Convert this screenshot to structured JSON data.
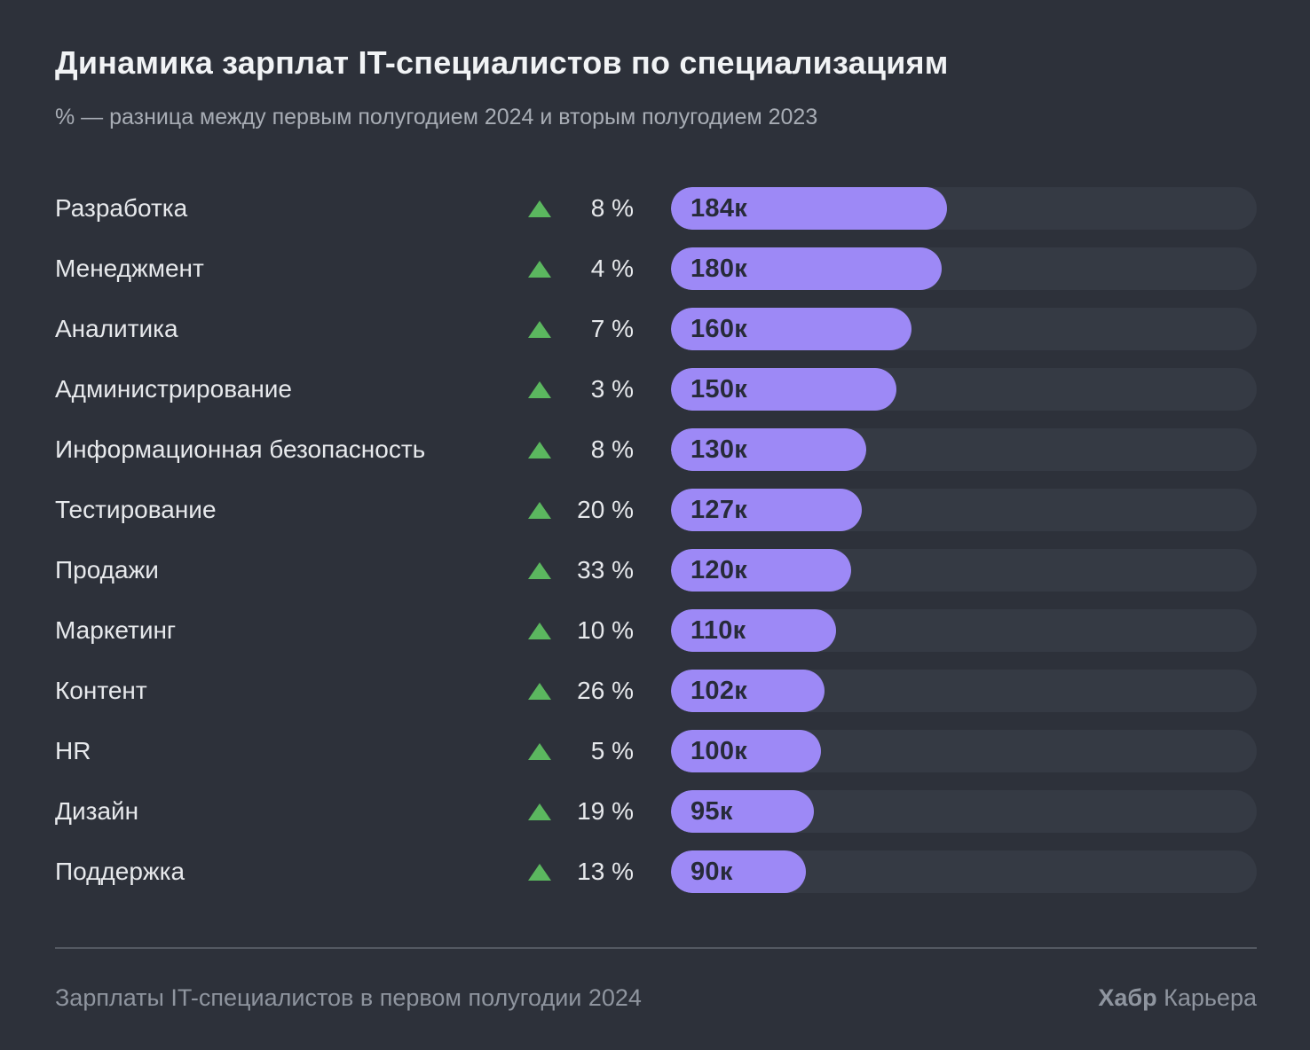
{
  "header": {
    "title": "Динамика зарплат IT-специалистов по специализациям",
    "subtitle": "% — разница между первым полугодием 2024 и вторым полугодием 2023"
  },
  "footer": {
    "source": "Зарплаты IT-специалистов в первом полугодии 2024",
    "brand": {
      "bold": "Хабр",
      "regular": "Карьера"
    }
  },
  "colors": {
    "background": "#2d313a",
    "bar": "#9d89f6",
    "bar_track": "#353a44",
    "bar_text": "#272b39",
    "arrow_green": "#5bb75f",
    "text_primary": "#e7e9ec",
    "text_secondary": "#a8adb5",
    "footer_text": "#8f959f"
  },
  "chart_data": {
    "type": "bar",
    "orientation": "horizontal",
    "title": "Динамика зарплат IT-специалистов по специализациям",
    "subtitle": "% — разница между первым полугодием 2024 и вторым полугодием 2023",
    "value_unit": "тысяч рублей (к)",
    "axis_max": 390,
    "grid": false,
    "legend": false,
    "rows": [
      {
        "category": "Разработка",
        "change_pct": 8,
        "change_label": "8 %",
        "change_direction": "up",
        "value": 184,
        "value_label": "184к"
      },
      {
        "category": "Менеджмент",
        "change_pct": 4,
        "change_label": "4 %",
        "change_direction": "up",
        "value": 180,
        "value_label": "180к"
      },
      {
        "category": "Аналитика",
        "change_pct": 7,
        "change_label": "7 %",
        "change_direction": "up",
        "value": 160,
        "value_label": "160к"
      },
      {
        "category": "Администрирование",
        "change_pct": 3,
        "change_label": "3 %",
        "change_direction": "up",
        "value": 150,
        "value_label": "150к"
      },
      {
        "category": "Информационная безопасность",
        "change_pct": 8,
        "change_label": "8 %",
        "change_direction": "up",
        "value": 130,
        "value_label": "130к"
      },
      {
        "category": "Тестирование",
        "change_pct": 20,
        "change_label": "20 %",
        "change_direction": "up",
        "value": 127,
        "value_label": "127к"
      },
      {
        "category": "Продажи",
        "change_pct": 33,
        "change_label": "33 %",
        "change_direction": "up",
        "value": 120,
        "value_label": "120к"
      },
      {
        "category": "Маркетинг",
        "change_pct": 10,
        "change_label": "10 %",
        "change_direction": "up",
        "value": 110,
        "value_label": "110к"
      },
      {
        "category": "Контент",
        "change_pct": 26,
        "change_label": "26 %",
        "change_direction": "up",
        "value": 102,
        "value_label": "102к"
      },
      {
        "category": "HR",
        "change_pct": 5,
        "change_label": "5 %",
        "change_direction": "up",
        "value": 100,
        "value_label": "100к"
      },
      {
        "category": "Дизайн",
        "change_pct": 19,
        "change_label": "19 %",
        "change_direction": "up",
        "value": 95,
        "value_label": "95к"
      },
      {
        "category": "Поддержка",
        "change_pct": 13,
        "change_label": "13 %",
        "change_direction": "up",
        "value": 90,
        "value_label": "90к"
      }
    ]
  }
}
